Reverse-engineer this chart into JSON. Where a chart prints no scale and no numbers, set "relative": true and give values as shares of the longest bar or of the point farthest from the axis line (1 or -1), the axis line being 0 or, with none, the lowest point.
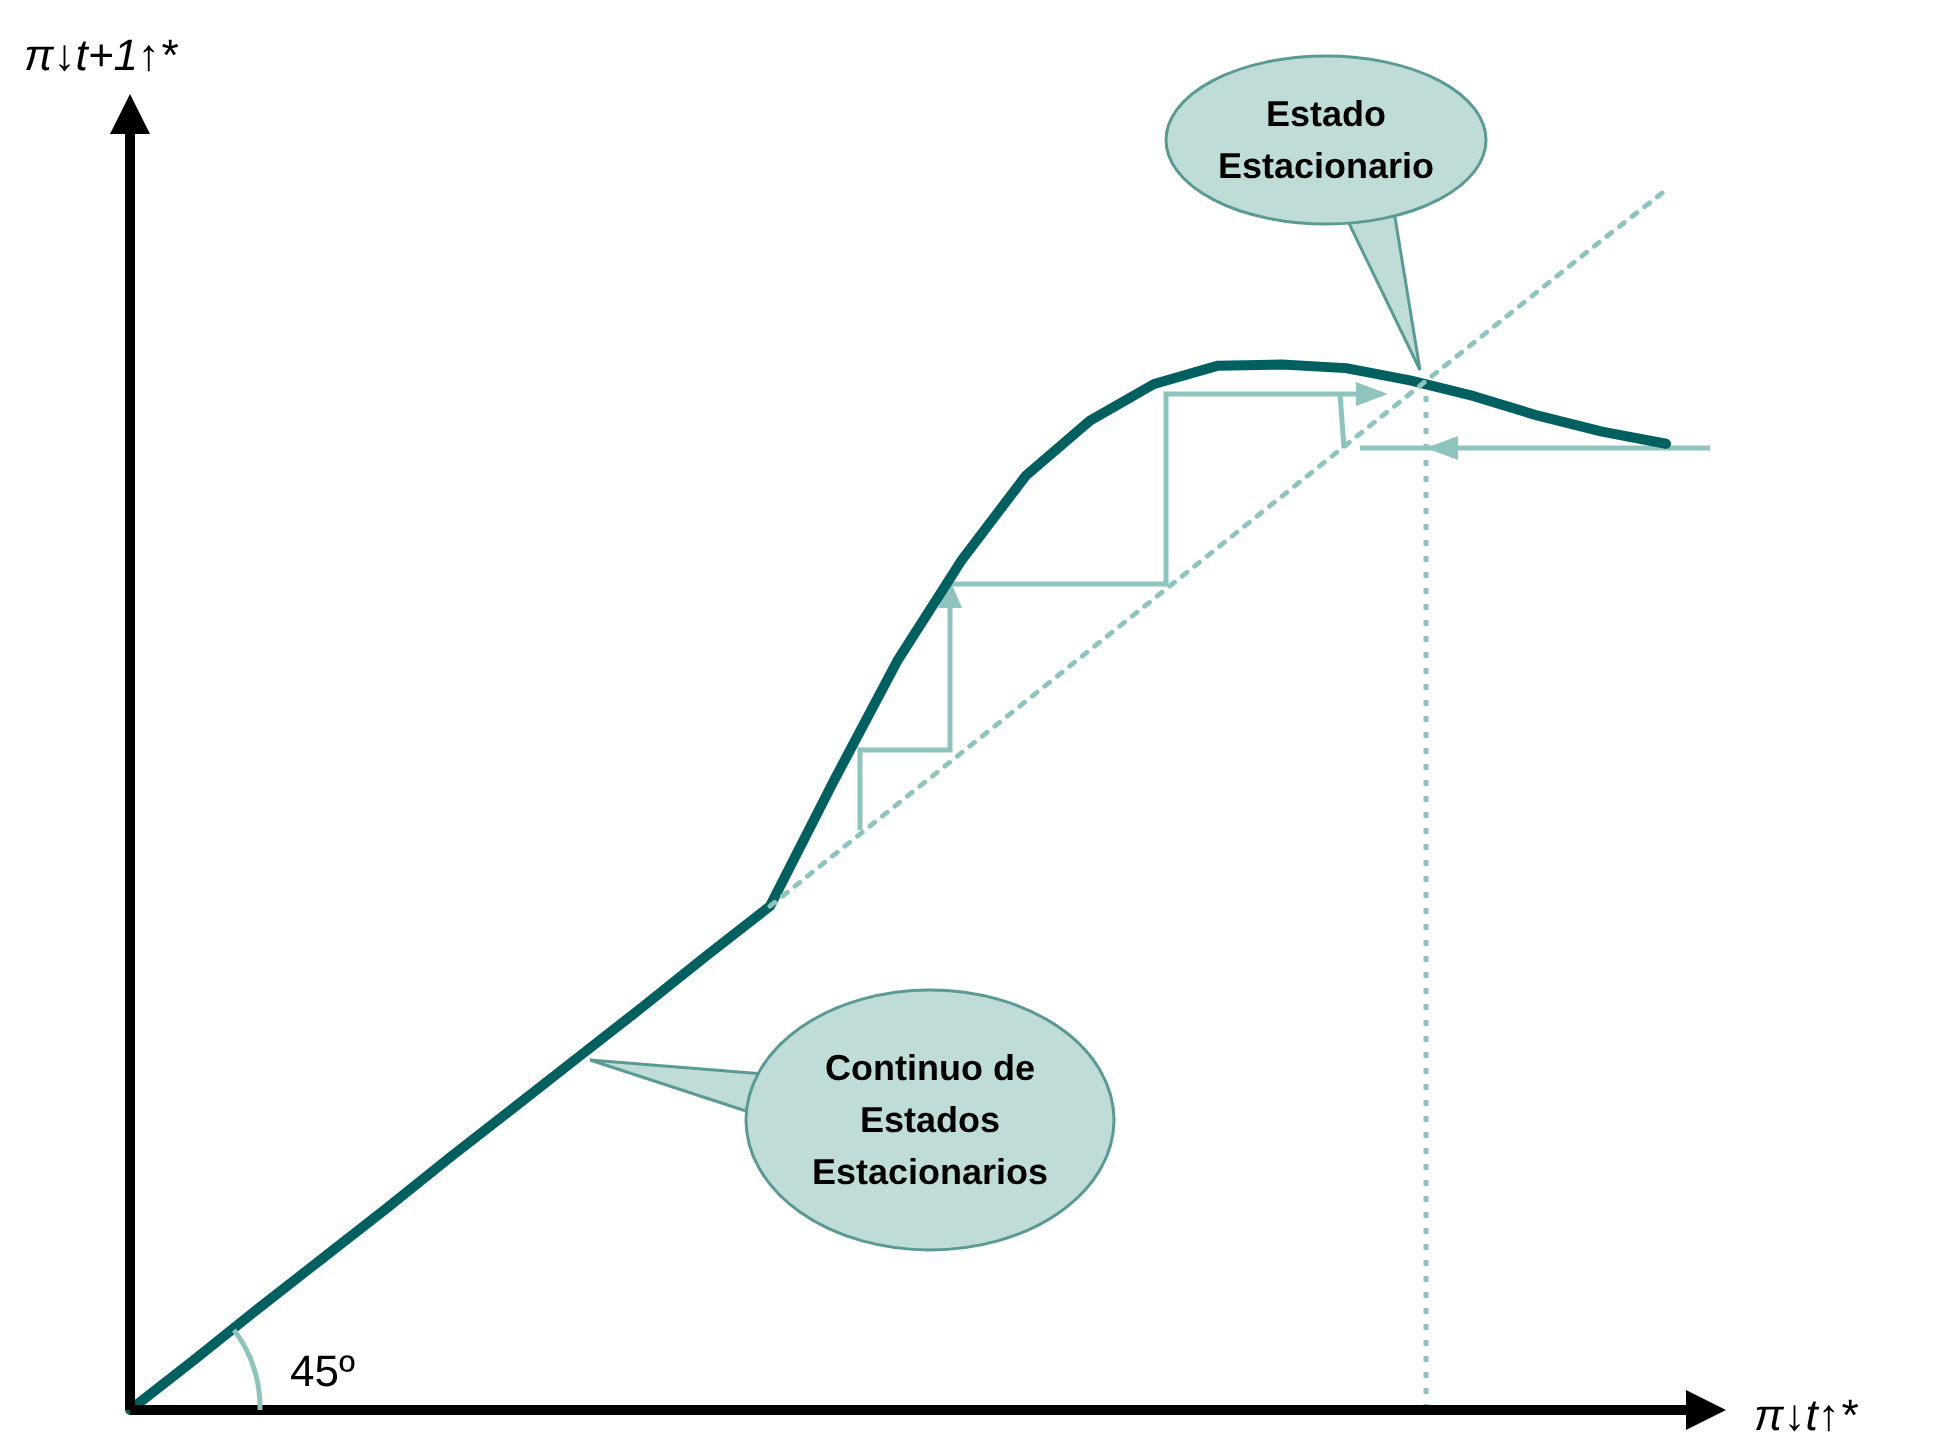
{
  "chart_data": {
    "type": "line",
    "relative": true,
    "xlabel": "π↓t↑*",
    "ylabel": "π↓t+1↑*",
    "categories": [
      null,
      null,
      null,
      null,
      null,
      null,
      null,
      null,
      null,
      null,
      null,
      null,
      null,
      null,
      null,
      null,
      null,
      null,
      null,
      null,
      null,
      null,
      null,
      null,
      null
    ],
    "series": [
      {
        "color": "#006060",
        "values": [
          0,
          0.041,
          0.083,
          0.124,
          0.165,
          0.207,
          0.248,
          0.289,
          0.33,
          0.372,
          0.413,
          0.516,
          0.615,
          0.697,
          0.766,
          0.811,
          0.841,
          0.856,
          0.857,
          0.854,
          0.844,
          0.831,
          0.815,
          0.802,
          0.792
        ]
      },
      {
        "color": "#8fc3bd",
        "line_style": "dotted",
        "values": [
          null,
          null,
          null,
          null,
          null,
          null,
          null,
          null,
          null,
          null,
          0.413,
          0.455,
          0.497,
          0.539,
          0.581,
          0.623,
          0.665,
          0.707,
          0.749,
          0.791,
          0.833,
          0.875,
          0.917,
          0.959,
          1.0
        ]
      }
    ],
    "annotations": [
      "Estado Estacionario",
      "Continuo de Estados Estacionarios",
      "45º"
    ]
  }
}
